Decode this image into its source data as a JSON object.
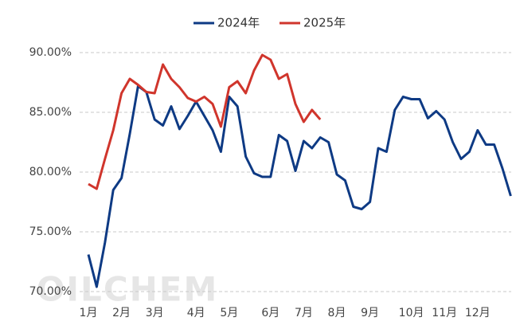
{
  "chart_data": {
    "type": "line",
    "watermark": "OILCHEM",
    "categories": [
      "1月",
      null,
      null,
      null,
      "2月",
      null,
      null,
      null,
      "3月",
      null,
      null,
      null,
      null,
      "4月",
      null,
      null,
      null,
      "5月",
      null,
      null,
      null,
      null,
      "6月",
      null,
      null,
      null,
      "7月",
      null,
      null,
      null,
      "8月",
      null,
      null,
      null,
      "9月",
      null,
      null,
      null,
      null,
      "10月",
      null,
      null,
      null,
      "11月",
      null,
      null,
      null,
      "12月",
      null,
      null,
      null,
      null
    ],
    "series": [
      {
        "name": "2024年",
        "color": "#0e3a84",
        "values": [
          73.1,
          70.4,
          74.1,
          78.5,
          79.5,
          83.2,
          87.2,
          86.7,
          84.4,
          83.9,
          85.5,
          83.6,
          84.7,
          85.9,
          84.7,
          83.5,
          81.7,
          86.3,
          85.5,
          81.3,
          79.9,
          79.6,
          79.6,
          83.1,
          82.6,
          80.1,
          82.6,
          82.0,
          82.9,
          82.5,
          79.8,
          79.3,
          77.1,
          76.9,
          77.5,
          82.0,
          81.7,
          85.2,
          86.3,
          86.1,
          86.1,
          84.5,
          85.1,
          84.4,
          82.5,
          81.1,
          81.7,
          83.5,
          82.3,
          82.3,
          80.3,
          78.0
        ]
      },
      {
        "name": "2025年",
        "color": "#d0352c",
        "values": [
          79.0,
          78.6,
          81.1,
          83.5,
          86.6,
          87.8,
          87.3,
          86.7,
          86.6,
          89.0,
          87.8,
          87.1,
          86.2,
          85.9,
          86.3,
          85.7,
          83.8,
          87.1,
          87.6,
          86.6,
          88.5,
          89.8,
          89.4,
          87.8,
          88.2,
          85.7,
          84.2,
          85.2,
          84.4,
          null,
          null,
          null,
          null,
          null,
          null,
          null,
          null,
          null,
          null,
          null,
          null,
          null,
          null,
          null,
          null,
          null,
          null,
          null,
          null,
          null,
          null,
          null
        ]
      }
    ],
    "ylim": [
      70,
      90
    ],
    "yticks": [
      {
        "value": 70,
        "label": "70.00%"
      },
      {
        "value": 75,
        "label": "75.00%"
      },
      {
        "value": 80,
        "label": "80.00%"
      },
      {
        "value": 85,
        "label": "85.00%"
      },
      {
        "value": 90,
        "label": "90.00%"
      }
    ],
    "grid": true,
    "legend": "top"
  }
}
